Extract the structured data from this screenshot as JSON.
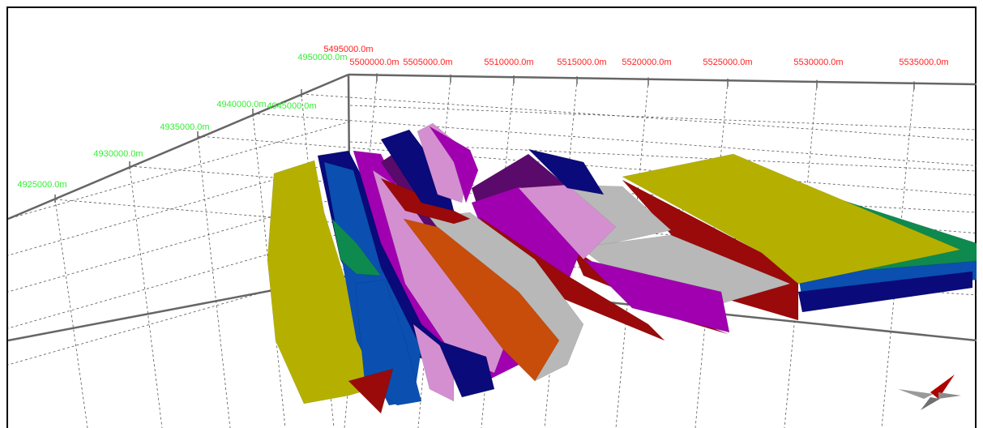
{
  "viewer": {
    "axes": {
      "x_color": "#ff2020",
      "y_color": "#33ee33",
      "x_labels": [
        "5495000.0m",
        "5500000.0m",
        "5505000.0m",
        "5510000.0m",
        "5515000.0m",
        "5520000.0m",
        "5525000.0m",
        "5530000.0m",
        "5535000.0m"
      ],
      "y_labels": [
        "4950000.0m",
        "4945000.0m",
        "4940000.0m",
        "4935000.0m",
        "4930000.0m",
        "4925000.0m"
      ]
    },
    "surface_colors": [
      "#b5b000",
      "#0a0a7a",
      "#0b4fb0",
      "#0e8a4e",
      "#a000b0",
      "#d48fd0",
      "#5a0a6a",
      "#9a0a0a",
      "#b8b8b8",
      "#c84c0a"
    ],
    "compass_icon": "compass-arrow-icon"
  }
}
